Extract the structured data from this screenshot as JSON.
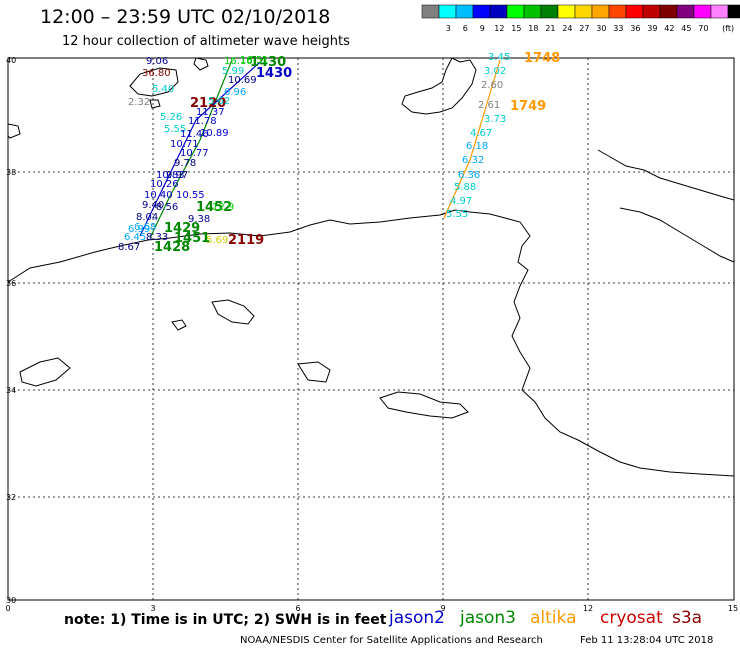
{
  "header": {
    "title": "12:00 – 23:59 UTC 02/10/2018",
    "subtitle": "12 hour collection of altimeter wave heights"
  },
  "legend": {
    "unit": "(ft)",
    "colors": [
      "#808080",
      "#00ffff",
      "#00bfff",
      "#0000ff",
      "#0000c0",
      "#00ff00",
      "#00c000",
      "#008000",
      "#ffff00",
      "#ffd700",
      "#ffa500",
      "#ff4500",
      "#ff0000",
      "#c00000",
      "#800000",
      "#800080",
      "#ff00ff",
      "#ff80ff",
      "#000000"
    ],
    "values": [
      "3",
      "6",
      "9",
      "12",
      "15",
      "18",
      "21",
      "24",
      "27",
      "30",
      "33",
      "36",
      "39",
      "42",
      "45",
      "70"
    ]
  },
  "axes": {
    "lat_labels": [
      "40",
      "38",
      "36",
      "34",
      "32",
      "30"
    ],
    "lon_labels": [
      "0",
      "3",
      "6",
      "9",
      "12",
      "15"
    ]
  },
  "note": "note:  1) Time is in UTC;  2) SWH is in feet",
  "satellites": [
    {
      "name": "jason2",
      "color": "#0000cc"
    },
    {
      "name": "jason3",
      "color": "#008800"
    },
    {
      "name": "altika",
      "color": "#ff9900"
    },
    {
      "name": "cryosat",
      "color": "#cc0000"
    },
    {
      "name": "s3a",
      "color": "#880000"
    }
  ],
  "credit": "NOAA/NESDIS Center for Satellite Applications and Research",
  "generated": "Feb 11 13:28:04 UTC 2018",
  "track_times": [
    {
      "text": "1748",
      "color": "#ff9900"
    },
    {
      "text": "1749",
      "color": "#ff9900"
    },
    {
      "text": "1430",
      "color": "#008800"
    },
    {
      "text": "1430",
      "color": "#0000cc"
    },
    {
      "text": "2120",
      "color": "#880000"
    },
    {
      "text": "1452",
      "color": "#008800"
    },
    {
      "text": "1429",
      "color": "#008800"
    },
    {
      "text": "1451",
      "color": "#008800"
    },
    {
      "text": "2119",
      "color": "#880000"
    },
    {
      "text": "1428",
      "color": "#008800"
    }
  ],
  "swh_values": [
    {
      "v": "3.45",
      "c": "#00cccc"
    },
    {
      "v": "3.02",
      "c": "#00cccc"
    },
    {
      "v": "2.60",
      "c": "#808080"
    },
    {
      "v": "2.61",
      "c": "#808080"
    },
    {
      "v": "3.73",
      "c": "#00cccc"
    },
    {
      "v": "4.67",
      "c": "#00cccc"
    },
    {
      "v": "6.18",
      "c": "#00aaff"
    },
    {
      "v": "6.32",
      "c": "#00aaff"
    },
    {
      "v": "6.36",
      "c": "#00aaff"
    },
    {
      "v": "5.88",
      "c": "#00cccc"
    },
    {
      "v": "4.97",
      "c": "#00cccc"
    },
    {
      "v": "5.55",
      "c": "#00cccc"
    },
    {
      "v": "9.06",
      "c": "#000088"
    },
    {
      "v": "36.80",
      "c": "#880000"
    },
    {
      "v": "16.16",
      "c": "#00cc00"
    },
    {
      "v": "16.51",
      "c": "#00cc00"
    },
    {
      "v": "5.99",
      "c": "#00cccc"
    },
    {
      "v": "10.69",
      "c": "#000088"
    },
    {
      "v": "5.40",
      "c": "#00cccc"
    },
    {
      "v": "6.96",
      "c": "#00aaff"
    },
    {
      "v": "2.32",
      "c": "#808080"
    },
    {
      "v": "5.62",
      "c": "#00cccc"
    },
    {
      "v": "11.37",
      "c": "#0000cc"
    },
    {
      "v": "5.26",
      "c": "#00cccc"
    },
    {
      "v": "11.78",
      "c": "#0000cc"
    },
    {
      "v": "5.55",
      "c": "#00cccc"
    },
    {
      "v": "11.46",
      "c": "#0000cc"
    },
    {
      "v": "10.89",
      "c": "#0000cc"
    },
    {
      "v": "10.71",
      "c": "#0000cc"
    },
    {
      "v": "10.77",
      "c": "#0000cc"
    },
    {
      "v": "9.78",
      "c": "#000088"
    },
    {
      "v": "10.83",
      "c": "#0000cc"
    },
    {
      "v": "9.97",
      "c": "#000088"
    },
    {
      "v": "10.26",
      "c": "#0000cc"
    },
    {
      "v": "10.40",
      "c": "#0000cc"
    },
    {
      "v": "10.55",
      "c": "#0000cc"
    },
    {
      "v": "9.40",
      "c": "#000088"
    },
    {
      "v": "8.56",
      "c": "#000088"
    },
    {
      "v": "8.04",
      "c": "#000088"
    },
    {
      "v": "9.38",
      "c": "#000088"
    },
    {
      "v": "6.68",
      "c": "#00aaff"
    },
    {
      "v": "6.45",
      "c": "#00aaff"
    },
    {
      "v": "8.33",
      "c": "#000088"
    },
    {
      "v": "8.67",
      "c": "#000088"
    },
    {
      "v": "6.99",
      "c": "#00aaff"
    },
    {
      "v": "12.9",
      "c": "#00cc00"
    },
    {
      "v": "5.69",
      "c": "#cccc00"
    }
  ]
}
